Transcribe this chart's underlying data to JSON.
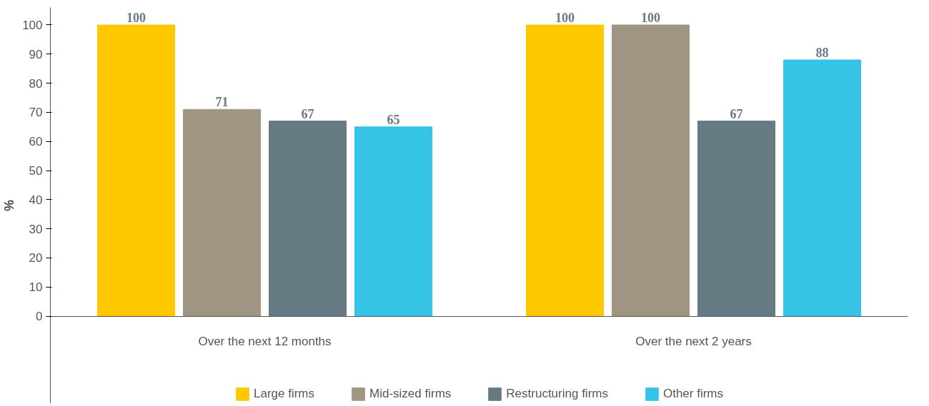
{
  "chart_data": {
    "type": "bar",
    "ylabel": "%",
    "categories": [
      "Over the next 12 months",
      "Over the next 2 years"
    ],
    "series": [
      {
        "name": "Large firms",
        "color": "#fdc800",
        "values": [
          100,
          100
        ]
      },
      {
        "name": "Mid-sized firms",
        "color": "#a09482",
        "values": [
          71,
          100
        ]
      },
      {
        "name": "Restructuring firms",
        "color": "#667a84",
        "values": [
          67,
          67
        ]
      },
      {
        "name": "Other firms",
        "color": "#35c3e6",
        "values": [
          65,
          88
        ]
      }
    ],
    "ylim": [
      0,
      100
    ],
    "yticks": [
      0,
      10,
      20,
      30,
      40,
      50,
      60,
      70,
      80,
      90,
      100
    ],
    "grid": false,
    "legend": "bottom",
    "data_labels": true
  }
}
